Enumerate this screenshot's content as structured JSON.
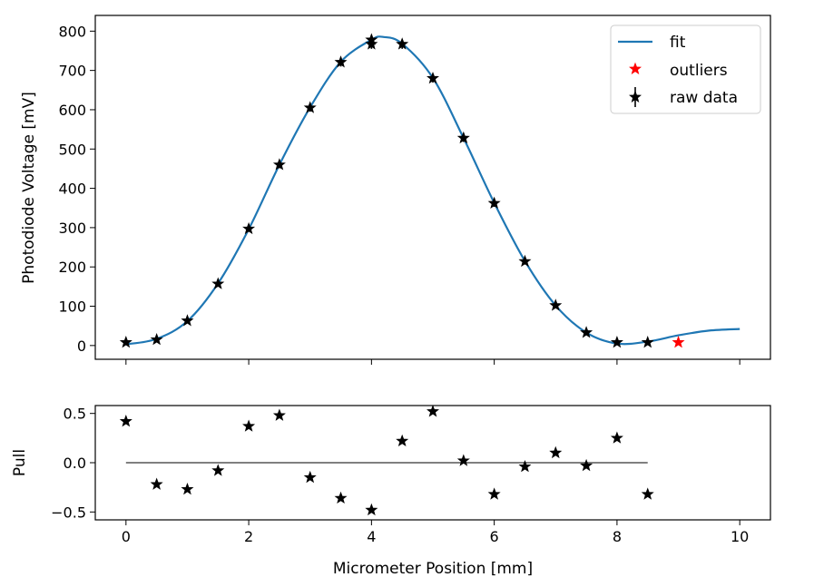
{
  "chart_data": [
    {
      "type": "scatter",
      "panel": "top",
      "xlim": [
        -0.5,
        10.5
      ],
      "ylim": [
        -35,
        840
      ],
      "xticks": [
        0,
        2,
        4,
        6,
        8,
        10
      ],
      "xtick_labels_visible": false,
      "yticks": [
        0,
        100,
        200,
        300,
        400,
        500,
        600,
        700,
        800
      ],
      "xlabel": "",
      "ylabel": "Photodiode Voltage [mV]",
      "legend": {
        "placement": "upper-right",
        "entries": [
          {
            "label": "fit",
            "kind": "line",
            "color": "#1f77b4"
          },
          {
            "label": "outliers",
            "kind": "marker",
            "color": "#ff0000"
          },
          {
            "label": "raw data",
            "kind": "errorbar-marker",
            "color": "#000000"
          }
        ]
      },
      "series": [
        {
          "name": "fit",
          "kind": "line",
          "color": "#1f77b4",
          "x": [
            0.0,
            0.5,
            1.0,
            1.5,
            2.0,
            2.5,
            3.0,
            3.5,
            4.0,
            4.2,
            4.5,
            5.0,
            5.5,
            6.0,
            6.5,
            7.0,
            7.5,
            8.0,
            8.5,
            9.0,
            9.5,
            10.0
          ],
          "y": [
            3,
            17,
            62,
            158,
            296,
            460,
            606,
            722,
            778,
            785,
            768,
            681,
            528,
            363,
            215,
            102,
            33,
            5,
            10,
            26,
            38,
            42
          ]
        },
        {
          "name": "raw data",
          "kind": "marker-errorbar",
          "color": "#000000",
          "x": [
            0.0,
            0.5,
            1.0,
            1.5,
            2.0,
            2.5,
            3.0,
            3.5,
            4.0,
            4.0,
            4.5,
            5.0,
            5.5,
            6.0,
            6.5,
            7.0,
            7.5,
            8.0,
            8.5
          ],
          "y": [
            8,
            15,
            63,
            157,
            297,
            460,
            605,
            721,
            778,
            767,
            767,
            680,
            528,
            362,
            214,
            102,
            33,
            8,
            8
          ],
          "yerr": [
            4,
            5,
            6,
            7,
            8,
            9,
            10,
            11,
            12,
            12,
            12,
            11,
            10,
            9,
            8,
            6,
            5,
            4,
            4
          ]
        },
        {
          "name": "outliers",
          "kind": "marker",
          "color": "#ff0000",
          "x": [
            9.0
          ],
          "y": [
            8
          ]
        }
      ]
    },
    {
      "type": "scatter",
      "panel": "bottom",
      "xlim": [
        -0.5,
        10.5
      ],
      "ylim": [
        -0.58,
        0.58
      ],
      "xticks": [
        0,
        2,
        4,
        6,
        8,
        10
      ],
      "yticks": [
        0.5,
        0.0,
        -0.5
      ],
      "ytick_labels": [
        "0.5",
        "0.0",
        "−0.5"
      ],
      "xlabel": "Micrometer Position [mm]",
      "ylabel": "Pull",
      "series": [
        {
          "name": "pull",
          "kind": "marker",
          "color": "#000000",
          "x": [
            0.0,
            0.5,
            1.0,
            1.5,
            2.0,
            2.5,
            3.0,
            3.5,
            4.0,
            4.5,
            5.0,
            5.5,
            6.0,
            6.5,
            7.0,
            7.5,
            8.0,
            8.5
          ],
          "y": [
            0.42,
            -0.22,
            -0.27,
            -0.08,
            0.37,
            0.48,
            -0.15,
            -0.36,
            -0.48,
            0.22,
            0.52,
            0.02,
            -0.32,
            -0.04,
            0.1,
            -0.03,
            0.25,
            -0.32
          ]
        },
        {
          "name": "zero line",
          "kind": "line",
          "color": "#808080",
          "x": [
            0.0,
            8.5
          ],
          "y": [
            0.0,
            0.0
          ]
        }
      ]
    }
  ]
}
